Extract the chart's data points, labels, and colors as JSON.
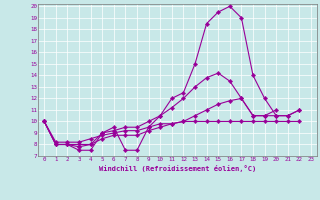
{
  "xlabel": "Windchill (Refroidissement éolien,°C)",
  "bg_color": "#c8e8e8",
  "line_color": "#990099",
  "xlim": [
    -0.5,
    23.5
  ],
  "ylim": [
    7,
    20.2
  ],
  "xticks": [
    0,
    1,
    2,
    3,
    4,
    5,
    6,
    7,
    8,
    9,
    10,
    11,
    12,
    13,
    14,
    15,
    16,
    17,
    18,
    19,
    20,
    21,
    22,
    23
  ],
  "yticks": [
    7,
    8,
    9,
    10,
    11,
    12,
    13,
    14,
    15,
    16,
    17,
    18,
    19,
    20
  ],
  "series": [
    [
      10,
      8,
      8,
      7.5,
      7.5,
      9.0,
      9.5,
      7.5,
      7.5,
      9.5,
      10.5,
      12.0,
      12.5,
      15.0,
      18.5,
      19.5,
      20.0,
      19.0,
      14.0,
      12.0,
      10.5,
      10.5,
      11.0
    ],
    [
      10,
      8,
      8,
      7.8,
      8.0,
      9.0,
      9.2,
      9.5,
      9.5,
      10.0,
      10.5,
      11.2,
      12.0,
      13.0,
      13.8,
      14.2,
      13.5,
      12.0,
      10.5,
      10.5,
      11.0,
      null,
      null
    ],
    [
      10,
      8,
      8,
      8.0,
      8.0,
      8.5,
      8.8,
      8.8,
      8.8,
      9.2,
      9.5,
      9.8,
      10.0,
      10.5,
      11.0,
      11.5,
      11.8,
      12.0,
      10.5,
      10.5,
      10.5,
      10.5,
      11.0
    ],
    [
      10,
      8.2,
      8.2,
      8.2,
      8.5,
      8.8,
      9.0,
      9.2,
      9.2,
      9.5,
      9.8,
      9.8,
      10.0,
      10.0,
      10.0,
      10.0,
      10.0,
      10.0,
      10.0,
      10.0,
      10.0,
      10.0,
      10.0
    ]
  ]
}
